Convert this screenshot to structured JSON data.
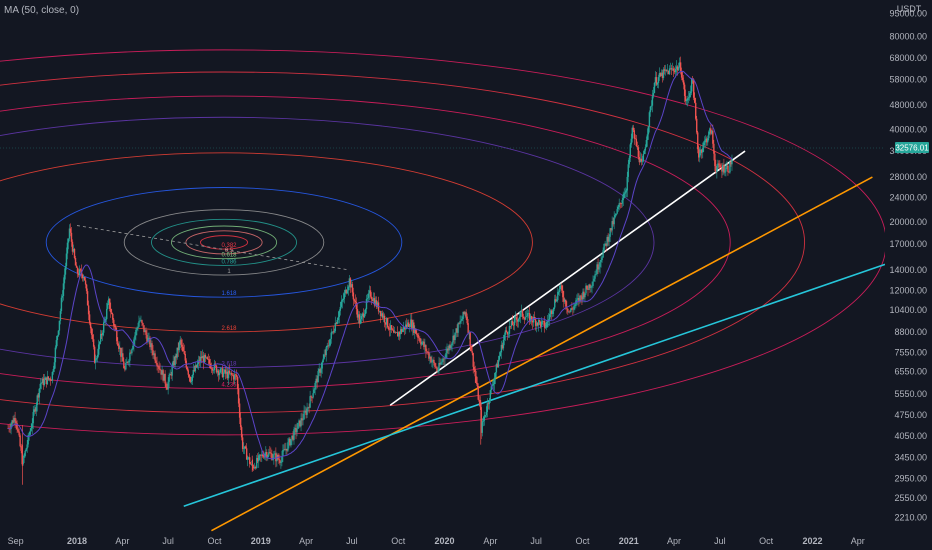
{
  "indicator_legend": "MA (50, close, 0)",
  "currency_label": "USDT",
  "last_price": "32576.01",
  "colors": {
    "background": "#131722",
    "up": "#26a69a",
    "down": "#ef5350",
    "ma": "#5b44c8",
    "white_trend": "#ffffff",
    "orange_trend": "#ff9800",
    "cyan_trend": "#26c6da",
    "price_badge": "#26a69a"
  },
  "chart_data": {
    "type": "candlestick",
    "symbol_quote": "USDT",
    "y_scale": "log",
    "ylim": [
      1980,
      105000
    ],
    "x_range": [
      "2017-08-01",
      "2022-05-25"
    ],
    "y_ticks": [
      "2210.00",
      "2550.00",
      "2950.00",
      "3450.00",
      "4050.00",
      "4750.00",
      "5550.00",
      "6550.00",
      "7550.00",
      "8800.00",
      "10400.00",
      "12000.00",
      "14000.00",
      "17000.00",
      "20000.00",
      "24000.00",
      "28000.00",
      "34000.00",
      "40000.00",
      "48000.00",
      "58000.00",
      "68000.00",
      "80000.00",
      "95000.00"
    ],
    "x_ticks": [
      {
        "label": "Sep",
        "date": "2017-09-01"
      },
      {
        "label": "2018",
        "date": "2018-01-01"
      },
      {
        "label": "Apr",
        "date": "2018-04-01"
      },
      {
        "label": "Jul",
        "date": "2018-07-01"
      },
      {
        "label": "Oct",
        "date": "2018-10-01"
      },
      {
        "label": "2019",
        "date": "2019-01-01"
      },
      {
        "label": "Apr",
        "date": "2019-04-01"
      },
      {
        "label": "Jul",
        "date": "2019-07-01"
      },
      {
        "label": "Oct",
        "date": "2019-10-01"
      },
      {
        "label": "2020",
        "date": "2020-01-01"
      },
      {
        "label": "Apr",
        "date": "2020-04-01"
      },
      {
        "label": "Jul",
        "date": "2020-07-01"
      },
      {
        "label": "Oct",
        "date": "2020-10-01"
      },
      {
        "label": "2021",
        "date": "2021-01-01"
      },
      {
        "label": "Apr",
        "date": "2021-04-01"
      },
      {
        "label": "Jul",
        "date": "2021-07-01"
      },
      {
        "label": "Oct",
        "date": "2021-10-01"
      },
      {
        "label": "2022",
        "date": "2022-01-01"
      },
      {
        "label": "Apr",
        "date": "2022-04-01"
      }
    ],
    "price_path": [
      [
        "2017-08-17",
        4300
      ],
      [
        "2017-09-01",
        4700
      ],
      [
        "2017-09-15",
        3300
      ],
      [
        "2017-10-01",
        4300
      ],
      [
        "2017-10-20",
        6000
      ],
      [
        "2017-11-12",
        6300
      ],
      [
        "2017-11-28",
        10000
      ],
      [
        "2017-12-17",
        19000
      ],
      [
        "2017-12-31",
        13800
      ],
      [
        "2018-01-15",
        13500
      ],
      [
        "2018-02-06",
        7000
      ],
      [
        "2018-03-05",
        11000
      ],
      [
        "2018-04-06",
        6600
      ],
      [
        "2018-05-05",
        9700
      ],
      [
        "2018-06-29",
        5900
      ],
      [
        "2018-07-25",
        8200
      ],
      [
        "2018-08-14",
        6200
      ],
      [
        "2018-09-05",
        7300
      ],
      [
        "2018-10-15",
        6500
      ],
      [
        "2018-11-14",
        6300
      ],
      [
        "2018-11-25",
        3800
      ],
      [
        "2018-12-15",
        3200
      ],
      [
        "2019-01-10",
        3600
      ],
      [
        "2019-02-08",
        3400
      ],
      [
        "2019-04-02",
        4900
      ],
      [
        "2019-05-15",
        8000
      ],
      [
        "2019-06-26",
        13000
      ],
      [
        "2019-07-17",
        9400
      ],
      [
        "2019-08-06",
        11800
      ],
      [
        "2019-09-24",
        8500
      ],
      [
        "2019-10-25",
        9500
      ],
      [
        "2019-12-18",
        6600
      ],
      [
        "2020-02-12",
        10300
      ],
      [
        "2020-03-12",
        4900
      ],
      [
        "2020-03-13",
        4200
      ],
      [
        "2020-04-30",
        8700
      ],
      [
        "2020-06-01",
        10100
      ],
      [
        "2020-07-20",
        9200
      ],
      [
        "2020-08-17",
        12300
      ],
      [
        "2020-09-05",
        10200
      ],
      [
        "2020-10-21",
        12900
      ],
      [
        "2020-11-30",
        19700
      ],
      [
        "2020-12-27",
        26000
      ],
      [
        "2021-01-08",
        40000
      ],
      [
        "2021-01-27",
        30000
      ],
      [
        "2021-02-21",
        57000
      ],
      [
        "2021-03-13",
        61000
      ],
      [
        "2021-04-14",
        64000
      ],
      [
        "2021-04-25",
        48000
      ],
      [
        "2021-05-08",
        58000
      ],
      [
        "2021-05-19",
        33000
      ],
      [
        "2021-06-14",
        40000
      ],
      [
        "2021-06-22",
        30000
      ],
      [
        "2021-07-20",
        30000
      ],
      [
        "2021-07-26",
        32576
      ]
    ],
    "series": [
      {
        "name": "MA (50, close, 0)",
        "type": "moving_average",
        "length": 50
      }
    ],
    "trend_lines": [
      {
        "color": "#ffffff",
        "p1": [
          "2019-09-15",
          5100
        ],
        "p2": [
          "2021-08-20",
          34000
        ]
      },
      {
        "color": "#ff9800",
        "p1": [
          "2018-09-25",
          2000
        ],
        "p2": [
          "2022-04-30",
          28000
        ]
      },
      {
        "color": "#26c6da",
        "p1": [
          "2018-08-01",
          2400
        ],
        "p2": [
          "2022-05-25",
          14600
        ]
      }
    ],
    "fib_circles": {
      "center": [
        "2018-10-20",
        17200
      ],
      "levels": [
        {
          "label": "0.382",
          "rx": 0.013,
          "ry": 0.007,
          "color": "#f23645"
        },
        {
          "label": "0.5",
          "rx": 0.021,
          "ry": 0.012,
          "color": "#e57373"
        },
        {
          "label": "0.618",
          "rx": 0.029,
          "ry": 0.017,
          "color": "#81c784"
        },
        {
          "label": "0.786",
          "rx": 0.04,
          "ry": 0.024,
          "color": "#26a69a"
        },
        {
          "label": "1",
          "rx": 0.055,
          "ry": 0.034,
          "color": "#9e9e9e"
        },
        {
          "label": "1.618",
          "rx": 0.098,
          "ry": 0.057,
          "color": "#2962ff"
        },
        {
          "label": "2.618",
          "rx": 0.17,
          "ry": 0.093,
          "color": "#f44336"
        },
        {
          "label": "3.618",
          "rx": 0.237,
          "ry": 0.13,
          "color": "#673ab7"
        },
        {
          "label": "4.236",
          "rx": 0.279,
          "ry": 0.152,
          "color": "#e91e63"
        },
        {
          "label": "",
          "rx": 0.32,
          "ry": 0.177,
          "color": "#f23645"
        },
        {
          "label": "",
          "rx": 0.365,
          "ry": 0.2,
          "color": "#e91e63"
        }
      ],
      "labeled": [
        "0.382",
        "0.5",
        "0.618",
        "0.786",
        "1.618",
        "2.618",
        "3.618",
        "4.236"
      ]
    },
    "dashed_line": {
      "p1": [
        "2018-01-01",
        19500
      ],
      "p2": [
        "2019-06-26",
        14000
      ]
    }
  }
}
